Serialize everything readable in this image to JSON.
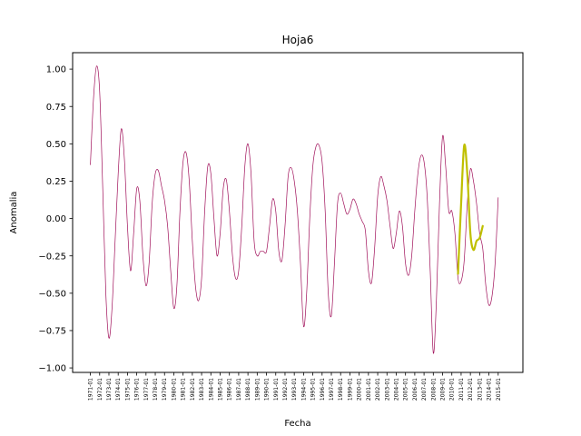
{
  "chart_data": {
    "type": "line",
    "title": "Hoja6",
    "xlabel": "Fecha",
    "ylabel": "Anomalia",
    "x_ticks": [
      "1971-01",
      "1972-01",
      "1973-01",
      "1974-01",
      "1975-01",
      "1976-01",
      "1977-01",
      "1978-01",
      "1979-01",
      "1980-01",
      "1981-01",
      "1982-01",
      "1983-01",
      "1984-01",
      "1985-01",
      "1986-01",
      "1987-01",
      "1988-01",
      "1989-01",
      "1990-01",
      "1991-01",
      "1992-01",
      "1993-01",
      "1994-01",
      "1995-01",
      "1996-01",
      "1997-01",
      "1998-01",
      "1999-01",
      "2000-01",
      "2001-01",
      "2002-01",
      "2003-01",
      "2004-01",
      "2005-01",
      "2006-01",
      "2007-01",
      "2008-01",
      "2009-01",
      "2010-01",
      "2011-01",
      "2012-01",
      "2013-01",
      "2014-01",
      "2015-01"
    ],
    "y_ticks": [
      "−1.00",
      "−0.75",
      "−0.50",
      "−0.25",
      "0.00",
      "0.25",
      "0.50",
      "0.75",
      "1.00"
    ],
    "xlim": [
      "1969-02",
      "2017-09"
    ],
    "ylim": [
      -1.03,
      1.11
    ],
    "grid": false,
    "series": [
      {
        "color": "#a0105a",
        "line_width": 0.7,
        "points": [
          [
            "1971-01",
            0.36
          ],
          [
            "1971-05",
            0.8
          ],
          [
            "1971-09",
            1.02
          ],
          [
            "1972-01",
            0.85
          ],
          [
            "1972-05",
            0.2
          ],
          [
            "1972-09",
            -0.5
          ],
          [
            "1973-01",
            -0.8
          ],
          [
            "1973-05",
            -0.6
          ],
          [
            "1973-09",
            -0.15
          ],
          [
            "1974-01",
            0.3
          ],
          [
            "1974-05",
            0.6
          ],
          [
            "1974-09",
            0.4
          ],
          [
            "1975-01",
            -0.05
          ],
          [
            "1975-05",
            -0.35
          ],
          [
            "1975-09",
            -0.1
          ],
          [
            "1976-01",
            0.2
          ],
          [
            "1976-05",
            0.12
          ],
          [
            "1976-09",
            -0.25
          ],
          [
            "1977-01",
            -0.45
          ],
          [
            "1977-05",
            -0.3
          ],
          [
            "1977-09",
            0.1
          ],
          [
            "1978-01",
            0.3
          ],
          [
            "1978-05",
            0.32
          ],
          [
            "1978-09",
            0.22
          ],
          [
            "1979-01",
            0.12
          ],
          [
            "1979-05",
            -0.05
          ],
          [
            "1979-09",
            -0.35
          ],
          [
            "1980-01",
            -0.6
          ],
          [
            "1980-05",
            -0.45
          ],
          [
            "1980-09",
            0.05
          ],
          [
            "1981-01",
            0.38
          ],
          [
            "1981-05",
            0.44
          ],
          [
            "1981-09",
            0.25
          ],
          [
            "1982-01",
            -0.15
          ],
          [
            "1982-05",
            -0.45
          ],
          [
            "1982-09",
            -0.55
          ],
          [
            "1983-01",
            -0.4
          ],
          [
            "1983-05",
            0.05
          ],
          [
            "1983-09",
            0.35
          ],
          [
            "1984-01",
            0.3
          ],
          [
            "1984-05",
            0.0
          ],
          [
            "1984-09",
            -0.25
          ],
          [
            "1985-01",
            -0.1
          ],
          [
            "1985-05",
            0.2
          ],
          [
            "1985-09",
            0.26
          ],
          [
            "1986-01",
            0.05
          ],
          [
            "1986-05",
            -0.25
          ],
          [
            "1986-09",
            -0.4
          ],
          [
            "1987-01",
            -0.35
          ],
          [
            "1987-05",
            -0.05
          ],
          [
            "1987-09",
            0.35
          ],
          [
            "1988-01",
            0.5
          ],
          [
            "1988-05",
            0.3
          ],
          [
            "1988-09",
            -0.15
          ],
          [
            "1989-01",
            -0.25
          ],
          [
            "1989-05",
            -0.22
          ],
          [
            "1989-09",
            -0.22
          ],
          [
            "1990-01",
            -0.22
          ],
          [
            "1990-05",
            -0.05
          ],
          [
            "1990-09",
            0.13
          ],
          [
            "1991-01",
            0.05
          ],
          [
            "1991-05",
            -0.22
          ],
          [
            "1991-09",
            -0.28
          ],
          [
            "1992-01",
            -0.05
          ],
          [
            "1992-05",
            0.28
          ],
          [
            "1992-09",
            0.34
          ],
          [
            "1993-01",
            0.25
          ],
          [
            "1993-05",
            0.05
          ],
          [
            "1993-09",
            -0.3
          ],
          [
            "1994-01",
            -0.72
          ],
          [
            "1994-05",
            -0.5
          ],
          [
            "1994-09",
            0.0
          ],
          [
            "1995-01",
            0.35
          ],
          [
            "1995-05",
            0.48
          ],
          [
            "1995-09",
            0.49
          ],
          [
            "1996-01",
            0.38
          ],
          [
            "1996-05",
            0.05
          ],
          [
            "1996-09",
            -0.5
          ],
          [
            "1997-01",
            -0.65
          ],
          [
            "1997-05",
            -0.3
          ],
          [
            "1997-09",
            0.1
          ],
          [
            "1998-01",
            0.17
          ],
          [
            "1998-05",
            0.1
          ],
          [
            "1998-09",
            0.03
          ],
          [
            "1999-01",
            0.06
          ],
          [
            "1999-05",
            0.13
          ],
          [
            "1999-09",
            0.1
          ],
          [
            "2000-01",
            0.03
          ],
          [
            "2000-05",
            -0.02
          ],
          [
            "2000-09",
            -0.08
          ],
          [
            "2001-01",
            -0.35
          ],
          [
            "2001-05",
            -0.43
          ],
          [
            "2001-09",
            -0.2
          ],
          [
            "2002-01",
            0.15
          ],
          [
            "2002-05",
            0.28
          ],
          [
            "2002-09",
            0.22
          ],
          [
            "2003-01",
            0.12
          ],
          [
            "2003-05",
            -0.05
          ],
          [
            "2003-09",
            -0.2
          ],
          [
            "2004-01",
            -0.1
          ],
          [
            "2004-05",
            0.05
          ],
          [
            "2004-09",
            -0.05
          ],
          [
            "2005-01",
            -0.3
          ],
          [
            "2005-05",
            -0.38
          ],
          [
            "2005-09",
            -0.25
          ],
          [
            "2006-01",
            0.05
          ],
          [
            "2006-05",
            0.3
          ],
          [
            "2006-09",
            0.42
          ],
          [
            "2007-01",
            0.38
          ],
          [
            "2007-05",
            0.15
          ],
          [
            "2007-09",
            -0.35
          ],
          [
            "2008-01",
            -0.9
          ],
          [
            "2008-05",
            -0.55
          ],
          [
            "2008-09",
            0.1
          ],
          [
            "2009-01",
            0.55
          ],
          [
            "2009-05",
            0.35
          ],
          [
            "2009-09",
            0.05
          ],
          [
            "2010-01",
            0.05
          ],
          [
            "2010-05",
            -0.1
          ],
          [
            "2010-09",
            -0.4
          ],
          [
            "2011-01",
            -0.42
          ],
          [
            "2011-05",
            -0.28
          ],
          [
            "2011-09",
            0.1
          ],
          [
            "2012-01",
            0.33
          ],
          [
            "2012-05",
            0.25
          ],
          [
            "2012-09",
            0.1
          ],
          [
            "2013-01",
            -0.1
          ],
          [
            "2013-05",
            -0.2
          ],
          [
            "2013-09",
            -0.45
          ],
          [
            "2014-01",
            -0.58
          ],
          [
            "2014-05",
            -0.52
          ],
          [
            "2014-09",
            -0.3
          ],
          [
            "2015-01",
            0.14
          ]
        ]
      },
      {
        "color": "#bfbf00",
        "line_width": 2.2,
        "points": [
          [
            "2010-09",
            -0.37
          ],
          [
            "2011-01",
            0.1
          ],
          [
            "2011-05",
            0.49
          ],
          [
            "2011-09",
            0.3
          ],
          [
            "2012-01",
            -0.1
          ],
          [
            "2012-05",
            -0.21
          ],
          [
            "2012-09",
            -0.15
          ],
          [
            "2013-01",
            -0.13
          ],
          [
            "2013-05",
            -0.05
          ]
        ]
      }
    ]
  }
}
